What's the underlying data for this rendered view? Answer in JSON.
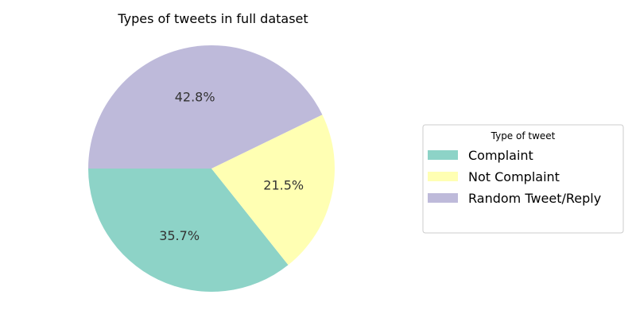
{
  "chart_data": {
    "type": "pie",
    "title": "Types of tweets in full dataset",
    "slices": [
      {
        "label": "Complaint",
        "value": 35.7,
        "pct_label": "35.7%",
        "color": "#8dd3c7"
      },
      {
        "label": "Not Complaint",
        "value": 21.5,
        "pct_label": "21.5%",
        "color": "#ffffb3"
      },
      {
        "label": "Random Tweet/Reply",
        "value": 42.8,
        "pct_label": "42.8%",
        "color": "#bebada"
      }
    ],
    "start_angle_deg": 180,
    "direction": "counterclockwise",
    "legend": {
      "title": "Type of tweet",
      "placement": "right"
    }
  }
}
